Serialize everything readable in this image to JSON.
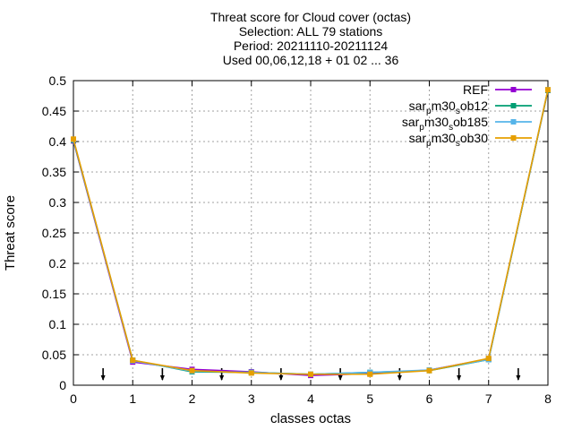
{
  "chart_data": {
    "type": "line",
    "title_lines": [
      "Threat score  for Cloud cover (octas)",
      "Selection: ALL      79 stations",
      "Period: 20211110-20211124",
      "Used 00,06,12,18 + 01 02 ... 36"
    ],
    "xlabel": "classes octas",
    "ylabel": "Threat score",
    "xlim": [
      0,
      8
    ],
    "ylim": [
      0,
      0.5
    ],
    "x_ticks": [
      "0",
      "1",
      "2",
      "3",
      "4",
      "5",
      "6",
      "7",
      "8"
    ],
    "y_ticks": [
      "0",
      "0.05",
      "0.1",
      "0.15",
      "0.2",
      "0.25",
      "0.3",
      "0.35",
      "0.4",
      "0.45",
      "0.5"
    ],
    "grid": true,
    "legend_position": "top-right",
    "x": [
      0,
      1,
      2,
      3,
      4,
      5,
      6,
      7,
      8
    ],
    "series": [
      {
        "name": "REF",
        "legend_base": "REF",
        "color": "#9400d3",
        "values": [
          0.401,
          0.038,
          0.026,
          0.022,
          0.016,
          0.019,
          0.025,
          0.043,
          0.484
        ]
      },
      {
        "name": "sar_pm30_sob12",
        "legend_parts": [
          "sar",
          "p",
          "m30",
          "s",
          "ob12"
        ],
        "color": "#009e73",
        "values": [
          0.402,
          0.041,
          0.022,
          0.021,
          0.018,
          0.021,
          0.024,
          0.042,
          0.484
        ]
      },
      {
        "name": "sar_pm30_sob185",
        "legend_parts": [
          "sar",
          "p",
          "m30",
          "s",
          "ob185"
        ],
        "color": "#56b4e9",
        "values": [
          0.403,
          0.04,
          0.023,
          0.021,
          0.018,
          0.021,
          0.025,
          0.042,
          0.485
        ]
      },
      {
        "name": "sar_pm30_sob30",
        "legend_parts": [
          "sar",
          "p",
          "m30",
          "s",
          "ob30"
        ],
        "color": "#e69f00",
        "values": [
          0.404,
          0.041,
          0.024,
          0.02,
          0.018,
          0.018,
          0.024,
          0.044,
          0.485
        ]
      }
    ],
    "markers_x": [
      0.5,
      1.5,
      2.5,
      3.5,
      4.5,
      5.5,
      6.5,
      7.5
    ]
  }
}
